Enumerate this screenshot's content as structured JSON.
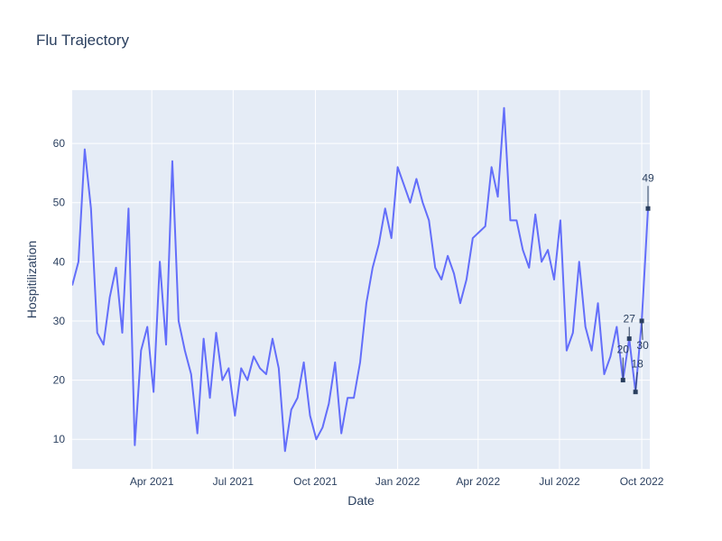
{
  "chart_data": {
    "type": "line",
    "title": "Flu Trajectory",
    "xlabel": "Date",
    "ylabel": "Hospitilization",
    "xlim": [
      "2021-01-02",
      "2022-10-10"
    ],
    "ylim": [
      5,
      69
    ],
    "grid": true,
    "x_ticks": [
      {
        "date": "2021-04-01",
        "label": "Apr 2021"
      },
      {
        "date": "2021-07-01",
        "label": "Jul 2021"
      },
      {
        "date": "2021-10-01",
        "label": "Oct 2021"
      },
      {
        "date": "2022-01-01",
        "label": "Jan 2022"
      },
      {
        "date": "2022-04-01",
        "label": "Apr 2022"
      },
      {
        "date": "2022-07-01",
        "label": "Jul 2022"
      },
      {
        "date": "2022-10-01",
        "label": "Oct 2022"
      }
    ],
    "y_ticks": [
      10,
      20,
      30,
      40,
      50,
      60
    ],
    "series": [
      {
        "color": "#636efa",
        "x": [
          "2021-01-02",
          "2021-01-09",
          "2021-01-16",
          "2021-01-23",
          "2021-01-30",
          "2021-02-06",
          "2021-02-13",
          "2021-02-20",
          "2021-02-27",
          "2021-03-06",
          "2021-03-13",
          "2021-03-20",
          "2021-03-27",
          "2021-04-03",
          "2021-04-10",
          "2021-04-17",
          "2021-04-24",
          "2021-05-01",
          "2021-05-08",
          "2021-05-15",
          "2021-05-22",
          "2021-05-29",
          "2021-06-05",
          "2021-06-12",
          "2021-06-19",
          "2021-06-26",
          "2021-07-03",
          "2021-07-10",
          "2021-07-17",
          "2021-07-24",
          "2021-07-31",
          "2021-08-07",
          "2021-08-14",
          "2021-08-21",
          "2021-08-28",
          "2021-09-04",
          "2021-09-11",
          "2021-09-18",
          "2021-09-25",
          "2021-10-02",
          "2021-10-09",
          "2021-10-16",
          "2021-10-23",
          "2021-10-30",
          "2021-11-06",
          "2021-11-13",
          "2021-11-20",
          "2021-11-27",
          "2021-12-04",
          "2021-12-11",
          "2021-12-18",
          "2021-12-25",
          "2022-01-01",
          "2022-01-08",
          "2022-01-15",
          "2022-01-22",
          "2022-01-29",
          "2022-02-05",
          "2022-02-12",
          "2022-02-19",
          "2022-02-26",
          "2022-03-05",
          "2022-03-12",
          "2022-03-19",
          "2022-03-26",
          "2022-04-02",
          "2022-04-09",
          "2022-04-16",
          "2022-04-23",
          "2022-04-30",
          "2022-05-07",
          "2022-05-14",
          "2022-05-21",
          "2022-05-28",
          "2022-06-04",
          "2022-06-11",
          "2022-06-18",
          "2022-06-25",
          "2022-07-02",
          "2022-07-09",
          "2022-07-16",
          "2022-07-23",
          "2022-07-30",
          "2022-08-06",
          "2022-08-13",
          "2022-08-20",
          "2022-08-27",
          "2022-09-03",
          "2022-09-10",
          "2022-09-17",
          "2022-09-24",
          "2022-10-01",
          "2022-10-08"
        ],
        "y": [
          36,
          40,
          59,
          49,
          28,
          26,
          34,
          39,
          28,
          49,
          9,
          25,
          29,
          18,
          40,
          26,
          57,
          30,
          25,
          21,
          11,
          27,
          17,
          28,
          20,
          22,
          14,
          22,
          20,
          24,
          22,
          21,
          27,
          22,
          8,
          15,
          17,
          23,
          14,
          10,
          12,
          16,
          23,
          11,
          17,
          17,
          23,
          33,
          39,
          43,
          49,
          44,
          56,
          53,
          50,
          54,
          50,
          47,
          39,
          37,
          41,
          38,
          33,
          37,
          44,
          45,
          46,
          56,
          51,
          66,
          47,
          47,
          42,
          39,
          48,
          40,
          42,
          37,
          47,
          25,
          28,
          40,
          29,
          25,
          33,
          21,
          24,
          29,
          20,
          27,
          18,
          30,
          49
        ]
      }
    ],
    "markers": [
      {
        "x": "2022-09-10",
        "y": 20
      },
      {
        "x": "2022-09-17",
        "y": 27
      },
      {
        "x": "2022-09-24",
        "y": 18
      },
      {
        "x": "2022-10-01",
        "y": 30
      },
      {
        "x": "2022-10-08",
        "y": 49
      }
    ],
    "annotations": [
      {
        "x": "2022-09-10",
        "text": "20"
      },
      {
        "x": "2022-09-17",
        "text": "27"
      },
      {
        "x": "2022-09-24",
        "text": "18"
      },
      {
        "x": "2022-10-01",
        "text": "30"
      },
      {
        "x": "2022-10-08",
        "text": "49"
      }
    ]
  }
}
